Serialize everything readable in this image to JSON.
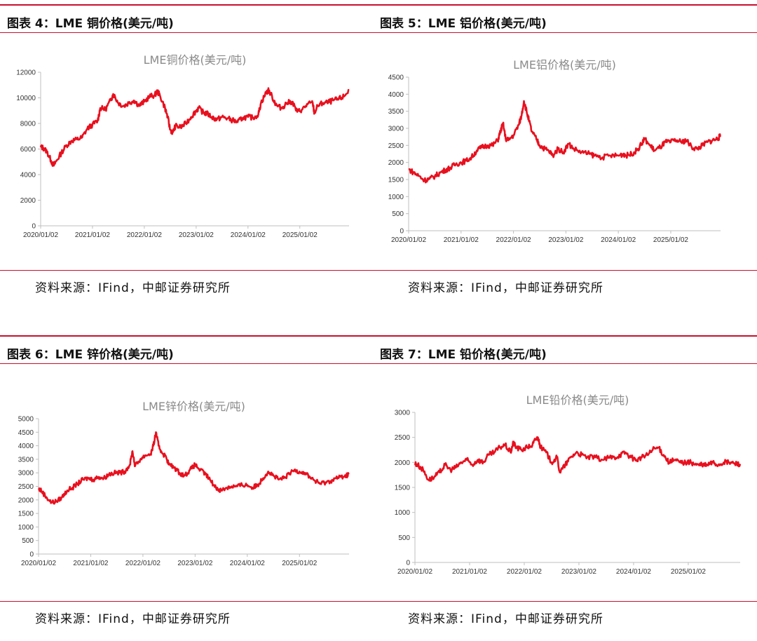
{
  "figures": [
    {
      "header": "图表 4：LME 铜价格(美元/吨)",
      "source": "资料来源：IFind，中邮证券研究所",
      "chart_data": {
        "type": "line",
        "title": "LME铜价格(美元/吨)",
        "xlabel": "",
        "ylabel": "",
        "ylim": [
          0,
          12000
        ],
        "yticks": [
          0,
          2000,
          4000,
          6000,
          8000,
          10000,
          12000
        ],
        "xtick_labels": [
          "2020/01/02",
          "2021/01/02",
          "2022/01/02",
          "2023/01/02",
          "2024/01/02",
          "2025/01/02"
        ],
        "xlim": [
          2020.0,
          2025.95
        ],
        "color": "#e8101e",
        "series": [
          {
            "name": "LME铜",
            "x": [
              2020.0,
              2020.05,
              2020.12,
              2020.2,
              2020.25,
              2020.3,
              2020.4,
              2020.5,
              2020.6,
              2020.7,
              2020.8,
              2020.9,
              2021.0,
              2021.1,
              2021.15,
              2021.25,
              2021.35,
              2021.4,
              2021.5,
              2021.6,
              2021.7,
              2021.8,
              2021.9,
              2022.0,
              2022.1,
              2022.2,
              2022.25,
              2022.3,
              2022.4,
              2022.45,
              2022.5,
              2022.55,
              2022.6,
              2022.7,
              2022.8,
              2022.9,
              2023.0,
              2023.05,
              2023.15,
              2023.2,
              2023.3,
              2023.4,
              2023.5,
              2023.6,
              2023.7,
              2023.8,
              2023.9,
              2024.0,
              2024.1,
              2024.2,
              2024.25,
              2024.35,
              2024.4,
              2024.5,
              2024.55,
              2024.65,
              2024.75,
              2024.85,
              2024.95,
              2025.05,
              2025.15,
              2025.25,
              2025.28,
              2025.35,
              2025.45,
              2025.55,
              2025.65,
              2025.75,
              2025.85,
              2025.95
            ],
            "values": [
              6150,
              6100,
              5800,
              5100,
              4700,
              5050,
              5700,
              6300,
              6650,
              6750,
              6900,
              7600,
              7900,
              8200,
              9200,
              9100,
              9800,
              10300,
              9600,
              9350,
              9600,
              9800,
              9400,
              9700,
              10100,
              10200,
              10500,
              10200,
              9200,
              8500,
              7500,
              7300,
              7800,
              7700,
              8000,
              8500,
              9000,
              9200,
              8800,
              8800,
              8500,
              8300,
              8500,
              8400,
              8250,
              8100,
              8450,
              8500,
              8450,
              8700,
              9600,
              10400,
              10600,
              9800,
              9400,
              9200,
              9600,
              9700,
              8900,
              9100,
              9500,
              9600,
              8800,
              9400,
              9600,
              9650,
              9800,
              9900,
              10100,
              10600
            ]
          }
        ]
      }
    },
    {
      "header": "图表 5：LME 铝价格(美元/吨)",
      "source": "资料来源：IFind，中邮证券研究所",
      "chart_data": {
        "type": "line",
        "title": "LME铝价格(美元/吨)",
        "xlabel": "",
        "ylabel": "",
        "ylim": [
          0,
          4500
        ],
        "yticks": [
          0,
          500,
          1000,
          1500,
          2000,
          2500,
          3000,
          3500,
          4000,
          4500
        ],
        "xtick_labels": [
          "2020/01/02",
          "2021/01/02",
          "2022/01/02",
          "2023/01/02",
          "2024/01/02",
          "2025/01/02"
        ],
        "xlim": [
          2020.0,
          2025.95
        ],
        "color": "#e8101e",
        "series": [
          {
            "name": "LME铝",
            "x": [
              2020.0,
              2020.1,
              2020.2,
              2020.3,
              2020.4,
              2020.5,
              2020.6,
              2020.7,
              2020.8,
              2020.9,
              2021.0,
              2021.1,
              2021.2,
              2021.3,
              2021.4,
              2021.5,
              2021.6,
              2021.7,
              2021.75,
              2021.8,
              2021.85,
              2021.9,
              2022.0,
              2022.1,
              2022.15,
              2022.2,
              2022.25,
              2022.3,
              2022.35,
              2022.45,
              2022.5,
              2022.6,
              2022.7,
              2022.75,
              2022.85,
              2022.95,
              2023.05,
              2023.15,
              2023.3,
              2023.45,
              2023.55,
              2023.7,
              2023.85,
              2024.0,
              2024.1,
              2024.15,
              2024.25,
              2024.35,
              2024.45,
              2024.5,
              2024.6,
              2024.7,
              2024.8,
              2024.9,
              2025.0,
              2025.1,
              2025.2,
              2025.3,
              2025.4,
              2025.5,
              2025.6,
              2025.7,
              2025.8,
              2025.9,
              2025.95
            ],
            "values": [
              1800,
              1700,
              1600,
              1480,
              1520,
              1600,
              1700,
              1780,
              1850,
              1950,
              2000,
              2050,
              2150,
              2350,
              2450,
              2500,
              2500,
              2650,
              2900,
              3150,
              2700,
              2650,
              2800,
              3100,
              3350,
              3800,
              3500,
              3200,
              2900,
              2650,
              2500,
              2400,
              2300,
              2200,
              2400,
              2300,
              2550,
              2400,
              2300,
              2250,
              2200,
              2150,
              2200,
              2200,
              2250,
              2200,
              2250,
              2350,
              2550,
              2700,
              2500,
              2350,
              2450,
              2600,
              2600,
              2650,
              2600,
              2650,
              2450,
              2400,
              2500,
              2600,
              2650,
              2700,
              2780
            ]
          }
        ]
      }
    },
    {
      "header": "图表 6：LME 锌价格(美元/吨)",
      "source": "资料来源：IFind，中邮证券研究所",
      "chart_data": {
        "type": "line",
        "title": "LME锌价格(美元/吨)",
        "xlabel": "",
        "ylabel": "",
        "ylim": [
          0,
          5000
        ],
        "yticks": [
          0,
          500,
          1000,
          1500,
          2000,
          2500,
          3000,
          3500,
          4000,
          4500,
          5000
        ],
        "xtick_labels": [
          "2020/01/02",
          "2021/01/02",
          "2022/01/02",
          "2023/01/02",
          "2024/01/02",
          "2025/01/02"
        ],
        "xlim": [
          2020.0,
          2025.95
        ],
        "color": "#e8101e",
        "series": [
          {
            "name": "LME锌",
            "x": [
              2020.0,
              2020.05,
              2020.15,
              2020.25,
              2020.35,
              2020.45,
              2020.55,
              2020.65,
              2020.75,
              2020.85,
              2020.95,
              2021.05,
              2021.15,
              2021.25,
              2021.35,
              2021.45,
              2021.55,
              2021.65,
              2021.75,
              2021.8,
              2021.85,
              2021.95,
              2022.05,
              2022.15,
              2022.2,
              2022.25,
              2022.3,
              2022.35,
              2022.45,
              2022.5,
              2022.6,
              2022.7,
              2022.8,
              2022.9,
              2023.0,
              2023.1,
              2023.2,
              2023.3,
              2023.4,
              2023.5,
              2023.6,
              2023.7,
              2023.8,
              2023.9,
              2024.0,
              2024.1,
              2024.2,
              2024.3,
              2024.4,
              2024.5,
              2024.6,
              2024.7,
              2024.8,
              2024.9,
              2025.0,
              2025.1,
              2025.2,
              2025.3,
              2025.4,
              2025.5,
              2025.6,
              2025.7,
              2025.8,
              2025.9,
              2025.95
            ],
            "values": [
              2400,
              2350,
              2100,
              1900,
              1950,
              2100,
              2350,
              2450,
              2600,
              2750,
              2800,
              2750,
              2850,
              2800,
              2950,
              3000,
              3000,
              3050,
              3300,
              3800,
              3250,
              3500,
              3650,
              3700,
              4000,
              4500,
              4000,
              3800,
              3550,
              3300,
              3200,
              3000,
              2900,
              3100,
              3300,
              3100,
              2950,
              2700,
              2450,
              2350,
              2450,
              2500,
              2500,
              2550,
              2550,
              2450,
              2550,
              2800,
              3050,
              2900,
              2750,
              2800,
              2950,
              3100,
              3050,
              3000,
              2850,
              2700,
              2600,
              2650,
              2700,
              2800,
              2850,
              2900,
              2950
            ]
          }
        ]
      }
    },
    {
      "header": "图表 7：LME 铅价格(美元/吨)",
      "source": "资料来源：IFind，中邮证券研究所",
      "chart_data": {
        "type": "line",
        "title": "LME铅价格(美元/吨)",
        "xlabel": "",
        "ylabel": "",
        "ylim": [
          0,
          3000
        ],
        "yticks": [
          0,
          500,
          1000,
          1500,
          2000,
          2500,
          3000
        ],
        "xtick_labels": [
          "2020/01/02",
          "2021/01/02",
          "2022/01/02",
          "2023/01/02",
          "2024/01/02",
          "2025/01/02"
        ],
        "xlim": [
          2020.0,
          2025.95
        ],
        "color": "#e8101e",
        "series": [
          {
            "name": "LME铅",
            "x": [
              2020.0,
              2020.05,
              2020.15,
              2020.25,
              2020.35,
              2020.45,
              2020.55,
              2020.65,
              2020.75,
              2020.85,
              2020.95,
              2021.05,
              2021.15,
              2021.25,
              2021.35,
              2021.45,
              2021.55,
              2021.65,
              2021.75,
              2021.8,
              2021.85,
              2021.95,
              2022.05,
              2022.15,
              2022.2,
              2022.25,
              2022.3,
              2022.4,
              2022.5,
              2022.6,
              2022.65,
              2022.75,
              2022.85,
              2022.95,
              2023.05,
              2023.15,
              2023.3,
              2023.45,
              2023.55,
              2023.65,
              2023.75,
              2023.85,
              2023.95,
              2024.05,
              2024.15,
              2024.25,
              2024.35,
              2024.45,
              2024.55,
              2024.65,
              2024.75,
              2024.85,
              2024.95,
              2025.05,
              2025.15,
              2025.25,
              2025.35,
              2025.45,
              2025.55,
              2025.65,
              2025.75,
              2025.85,
              2025.95
            ],
            "values": [
              1980,
              1950,
              1850,
              1650,
              1700,
              1800,
              1950,
              1850,
              1900,
              2000,
              2050,
              1950,
              2050,
              2000,
              2150,
              2200,
              2300,
              2350,
              2200,
              2400,
              2300,
              2250,
              2300,
              2350,
              2450,
              2500,
              2300,
              2200,
              2000,
              2100,
              1800,
              1950,
              2100,
              2200,
              2150,
              2100,
              2100,
              2050,
              2100,
              2100,
              2150,
              2200,
              2100,
              2050,
              2100,
              2150,
              2250,
              2300,
              2150,
              2000,
              2050,
              2000,
              2000,
              2000,
              1950,
              1950,
              1950,
              2000,
              1950,
              2000,
              2000,
              1980,
              1970
            ]
          }
        ]
      }
    }
  ]
}
